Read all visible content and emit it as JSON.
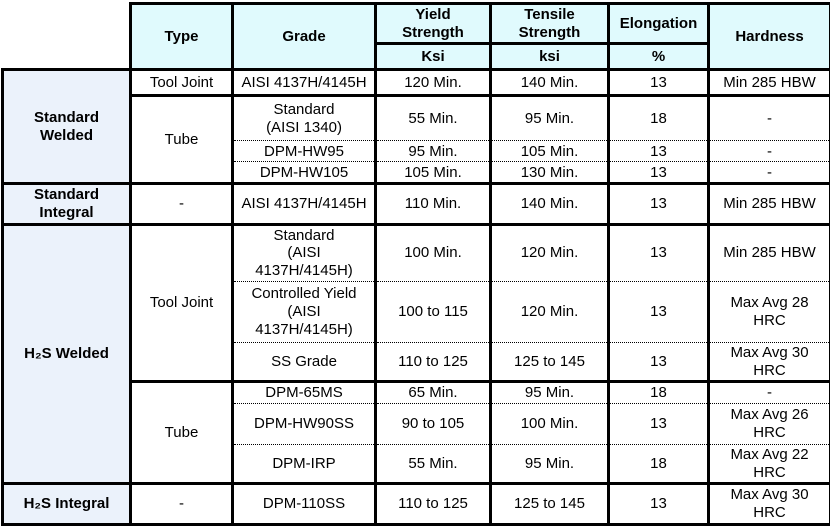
{
  "colors": {
    "header_bg": "#e0fafd",
    "group_bg": "#ebf2fb",
    "border": "#000000",
    "text": "#000000"
  },
  "table": {
    "header": {
      "type": "Type",
      "grade": "Grade",
      "yield_strength": "Yield\nStrength",
      "tensile_strength": "Tensile\nStrength",
      "elongation": "Elongation",
      "hardness": "Hardness",
      "yield_unit": "Ksi",
      "tensile_unit": "ksi",
      "elongation_unit": "%"
    },
    "rows": [
      {
        "sep": "solid",
        "cells": [
          {
            "kind": "group",
            "rowspan": 4,
            "text": "Standard\nWelded"
          },
          {
            "kind": "type",
            "text": "Tool Joint"
          },
          {
            "kind": "grade",
            "text": "AISI 4137H/4145H"
          },
          {
            "kind": "value",
            "text": "120 Min."
          },
          {
            "kind": "value",
            "text": "140 Min."
          },
          {
            "kind": "value",
            "text": "13"
          },
          {
            "kind": "value",
            "text": "Min 285 HBW"
          }
        ]
      },
      {
        "sep": "solid",
        "cells": [
          {
            "kind": "type",
            "rowspan": 3,
            "text": "Tube"
          },
          {
            "kind": "grade",
            "text": "Standard\n(AISI 1340)"
          },
          {
            "kind": "value",
            "text": "55 Min."
          },
          {
            "kind": "value",
            "text": "95 Min."
          },
          {
            "kind": "value",
            "text": "18"
          },
          {
            "kind": "value",
            "text": "-"
          }
        ]
      },
      {
        "sep": "dotted",
        "cells": [
          {
            "kind": "grade",
            "text": "DPM-HW95"
          },
          {
            "kind": "value",
            "text": "95 Min."
          },
          {
            "kind": "value",
            "text": "105 Min."
          },
          {
            "kind": "value",
            "text": "13"
          },
          {
            "kind": "value",
            "text": "-"
          }
        ]
      },
      {
        "sep": "dotted",
        "cells": [
          {
            "kind": "grade",
            "text": "DPM-HW105"
          },
          {
            "kind": "value",
            "text": "105 Min."
          },
          {
            "kind": "value",
            "text": "130 Min."
          },
          {
            "kind": "value",
            "text": "13"
          },
          {
            "kind": "value",
            "text": "-"
          }
        ]
      },
      {
        "sep": "solid",
        "cells": [
          {
            "kind": "group",
            "text": "Standard\nIntegral"
          },
          {
            "kind": "type",
            "text": "-"
          },
          {
            "kind": "grade",
            "text": "AISI 4137H/4145H"
          },
          {
            "kind": "value",
            "text": "110 Min."
          },
          {
            "kind": "value",
            "text": "140 Min."
          },
          {
            "kind": "value",
            "text": "13"
          },
          {
            "kind": "value",
            "text": "Min 285 HBW"
          }
        ]
      },
      {
        "sep": "solid",
        "cells": [
          {
            "kind": "group",
            "rowspan": 6,
            "text": "H₂S Welded"
          },
          {
            "kind": "type",
            "rowspan": 3,
            "text": "Tool Joint"
          },
          {
            "kind": "grade",
            "text": "Standard\n(AISI\n4137H/4145H)"
          },
          {
            "kind": "value",
            "text": "100 Min."
          },
          {
            "kind": "value",
            "text": "120 Min."
          },
          {
            "kind": "value",
            "text": "13"
          },
          {
            "kind": "value",
            "text": "Min 285 HBW"
          }
        ]
      },
      {
        "sep": "dotted",
        "cells": [
          {
            "kind": "grade",
            "text": "Controlled Yield\n(AISI\n4137H/4145H)"
          },
          {
            "kind": "value",
            "text": "100 to 115"
          },
          {
            "kind": "value",
            "text": "120 Min."
          },
          {
            "kind": "value",
            "text": "13"
          },
          {
            "kind": "value",
            "text": "Max Avg 28\nHRC"
          }
        ]
      },
      {
        "sep": "dotted",
        "cells": [
          {
            "kind": "grade",
            "text": "SS Grade"
          },
          {
            "kind": "value",
            "text": "110 to 125"
          },
          {
            "kind": "value",
            "text": "125 to 145"
          },
          {
            "kind": "value",
            "text": "13"
          },
          {
            "kind": "value",
            "text": "Max Avg 30\nHRC"
          }
        ]
      },
      {
        "sep": "solid",
        "cells": [
          {
            "kind": "type",
            "rowspan": 3,
            "text": "Tube"
          },
          {
            "kind": "grade",
            "text": "DPM-65MS"
          },
          {
            "kind": "value",
            "text": "65 Min."
          },
          {
            "kind": "value",
            "text": "95 Min."
          },
          {
            "kind": "value",
            "text": "18"
          },
          {
            "kind": "value",
            "text": "-"
          }
        ]
      },
      {
        "sep": "dotted",
        "cells": [
          {
            "kind": "grade",
            "text": "DPM-HW90SS"
          },
          {
            "kind": "value",
            "text": "90 to 105"
          },
          {
            "kind": "value",
            "text": "100 Min."
          },
          {
            "kind": "value",
            "text": "13"
          },
          {
            "kind": "value",
            "text": "Max Avg 26\nHRC"
          }
        ]
      },
      {
        "sep": "dotted",
        "cells": [
          {
            "kind": "grade",
            "text": "DPM-IRP"
          },
          {
            "kind": "value",
            "text": "55 Min."
          },
          {
            "kind": "value",
            "text": "95 Min."
          },
          {
            "kind": "value",
            "text": "18"
          },
          {
            "kind": "value",
            "text": "Max Avg 22\nHRC"
          }
        ]
      },
      {
        "sep": "solid",
        "cells": [
          {
            "kind": "group",
            "text": "H₂S Integral"
          },
          {
            "kind": "type",
            "text": "-"
          },
          {
            "kind": "grade",
            "text": "DPM-110SS"
          },
          {
            "kind": "value",
            "text": "110 to 125"
          },
          {
            "kind": "value",
            "text": "125 to 145"
          },
          {
            "kind": "value",
            "text": "13"
          },
          {
            "kind": "value",
            "text": "Max Avg 30\nHRC"
          }
        ]
      }
    ]
  }
}
